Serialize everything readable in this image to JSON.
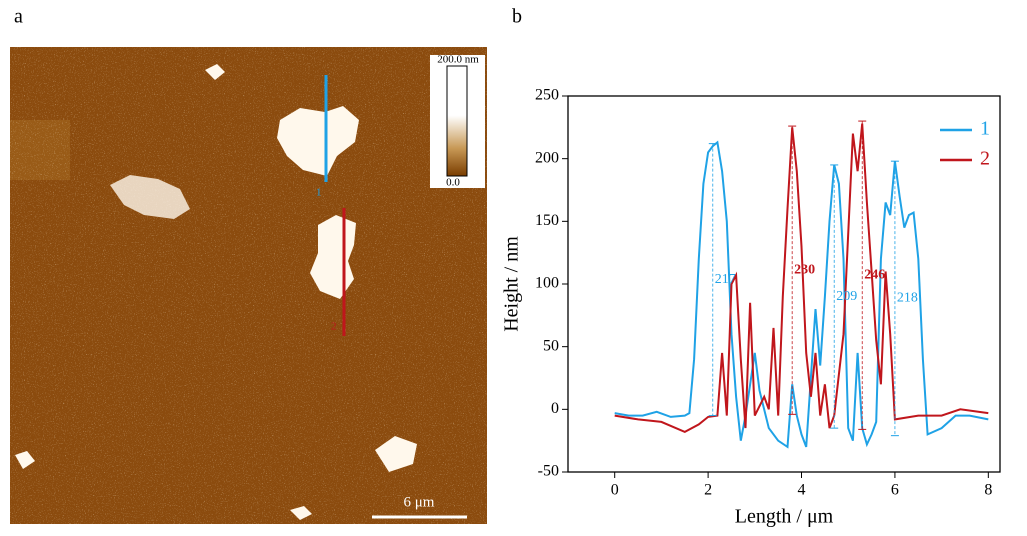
{
  "image": {
    "panel_label": "a",
    "colorbar_max": "200.0 nm",
    "colorbar_min": "0.0",
    "scale_bar": "6 μm",
    "line_1": "1",
    "line_2": "2"
  },
  "chart_data": {
    "type": "line",
    "panel_label": "b",
    "x_label": "Length / μm",
    "y_label": "Height / nm",
    "xlim": [
      -1,
      8.25
    ],
    "ylim": [
      -50,
      250
    ],
    "xticks": [
      0,
      2,
      4,
      6,
      8
    ],
    "yticks": [
      -50,
      0,
      50,
      100,
      150,
      200,
      250
    ],
    "legend": "upper right",
    "series": [
      {
        "name": "1",
        "color": "#1fa2e6",
        "x": [
          0,
          0.3,
          0.6,
          0.9,
          1.2,
          1.5,
          1.6,
          1.7,
          1.8,
          1.9,
          2.0,
          2.1,
          2.2,
          2.3,
          2.4,
          2.5,
          2.6,
          2.7,
          2.8,
          3.0,
          3.1,
          3.3,
          3.5,
          3.7,
          3.8,
          3.9,
          4.0,
          4.1,
          4.3,
          4.4,
          4.5,
          4.6,
          4.7,
          4.8,
          4.9,
          5.0,
          5.1,
          5.2,
          5.3,
          5.4,
          5.5,
          5.6,
          5.7,
          5.8,
          5.9,
          6.0,
          6.1,
          6.2,
          6.3,
          6.4,
          6.5,
          6.6,
          6.7,
          7.0,
          7.3,
          7.6,
          8.0
        ],
        "values": [
          -3,
          -5,
          -5,
          -2,
          -6,
          -5,
          -3,
          40,
          120,
          180,
          205,
          210,
          213,
          190,
          150,
          60,
          10,
          -25,
          -5,
          45,
          15,
          -15,
          -25,
          -30,
          20,
          -5,
          -20,
          -30,
          80,
          35,
          90,
          150,
          195,
          180,
          120,
          -15,
          -25,
          45,
          -15,
          -28,
          -20,
          -10,
          120,
          165,
          155,
          198,
          170,
          145,
          155,
          157,
          120,
          40,
          -20,
          -15,
          -5,
          -5,
          -8
        ]
      },
      {
        "name": "2",
        "color": "#c0161c",
        "x": [
          0,
          0.5,
          1.0,
          1.5,
          1.8,
          2.0,
          2.2,
          2.3,
          2.4,
          2.5,
          2.6,
          2.7,
          2.8,
          2.9,
          3.0,
          3.2,
          3.3,
          3.4,
          3.5,
          3.6,
          3.7,
          3.8,
          3.9,
          4.0,
          4.1,
          4.2,
          4.3,
          4.4,
          4.5,
          4.6,
          4.7,
          4.9,
          5.0,
          5.1,
          5.2,
          5.3,
          5.4,
          5.5,
          5.6,
          5.7,
          5.8,
          5.9,
          6.0,
          6.5,
          7.0,
          7.4,
          8.0
        ],
        "values": [
          -5,
          -8,
          -10,
          -18,
          -12,
          -6,
          -5,
          45,
          -5,
          100,
          107,
          40,
          -15,
          85,
          -5,
          10,
          0,
          65,
          -5,
          90,
          160,
          225,
          190,
          130,
          45,
          10,
          45,
          -5,
          20,
          -15,
          -5,
          60,
          140,
          220,
          190,
          228,
          165,
          110,
          55,
          20,
          110,
          60,
          -8,
          -5,
          -5,
          0,
          -3
        ]
      }
    ],
    "annotations": [
      {
        "value": 217,
        "series": 0,
        "x": 2.1,
        "top": 212,
        "bottom": -5
      },
      {
        "value": 230,
        "series": 1,
        "x": 3.8,
        "top": 226,
        "bottom": -4
      },
      {
        "value": 209,
        "series": 0,
        "x": 4.7,
        "top": 195,
        "bottom": -15
      },
      {
        "value": 246,
        "series": 1,
        "x": 5.3,
        "top": 230,
        "bottom": -16
      },
      {
        "value": 218,
        "series": 0,
        "x": 6.0,
        "top": 198,
        "bottom": -21
      }
    ]
  }
}
